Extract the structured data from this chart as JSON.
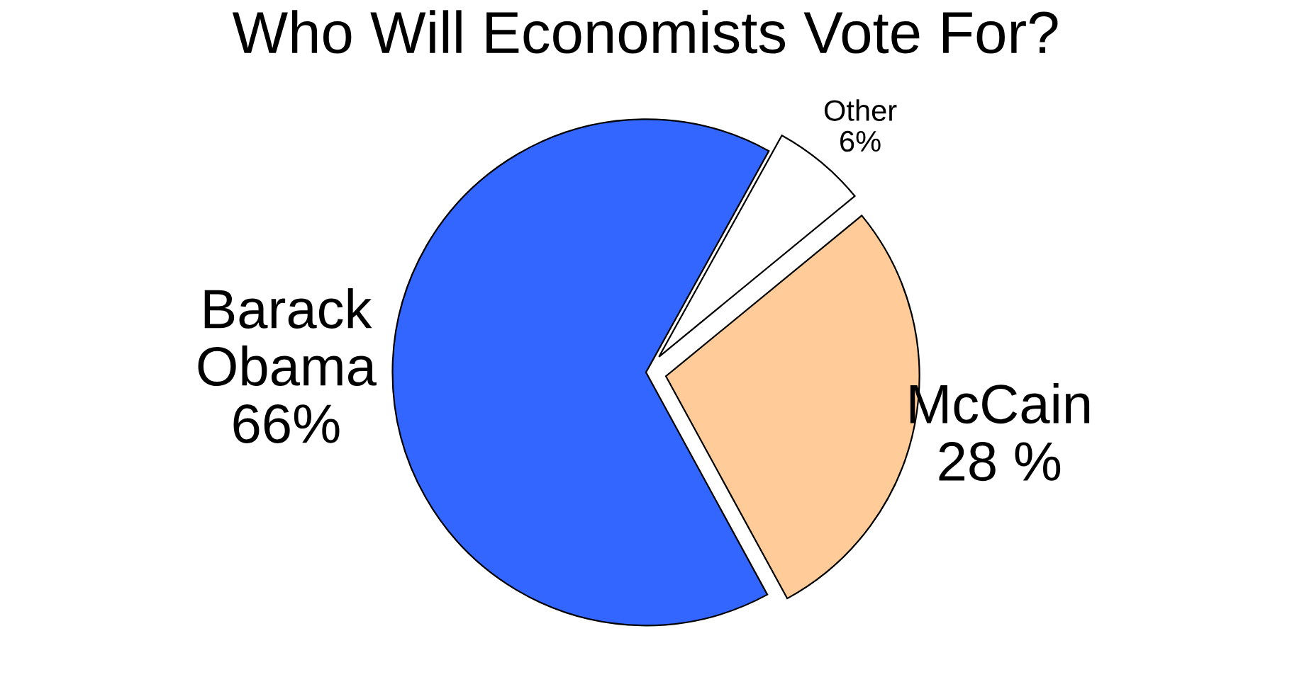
{
  "chart_data": {
    "type": "pie",
    "title": "Who Will Economists Vote For?",
    "categories": [
      "Barack Obama",
      "McCain",
      "Other"
    ],
    "values": [
      66,
      28,
      6
    ],
    "colors": [
      "#3366ff",
      "#ffcc99",
      "#ffffff"
    ],
    "value_labels": [
      "66%",
      "28 %",
      "6%"
    ],
    "legend": false
  }
}
